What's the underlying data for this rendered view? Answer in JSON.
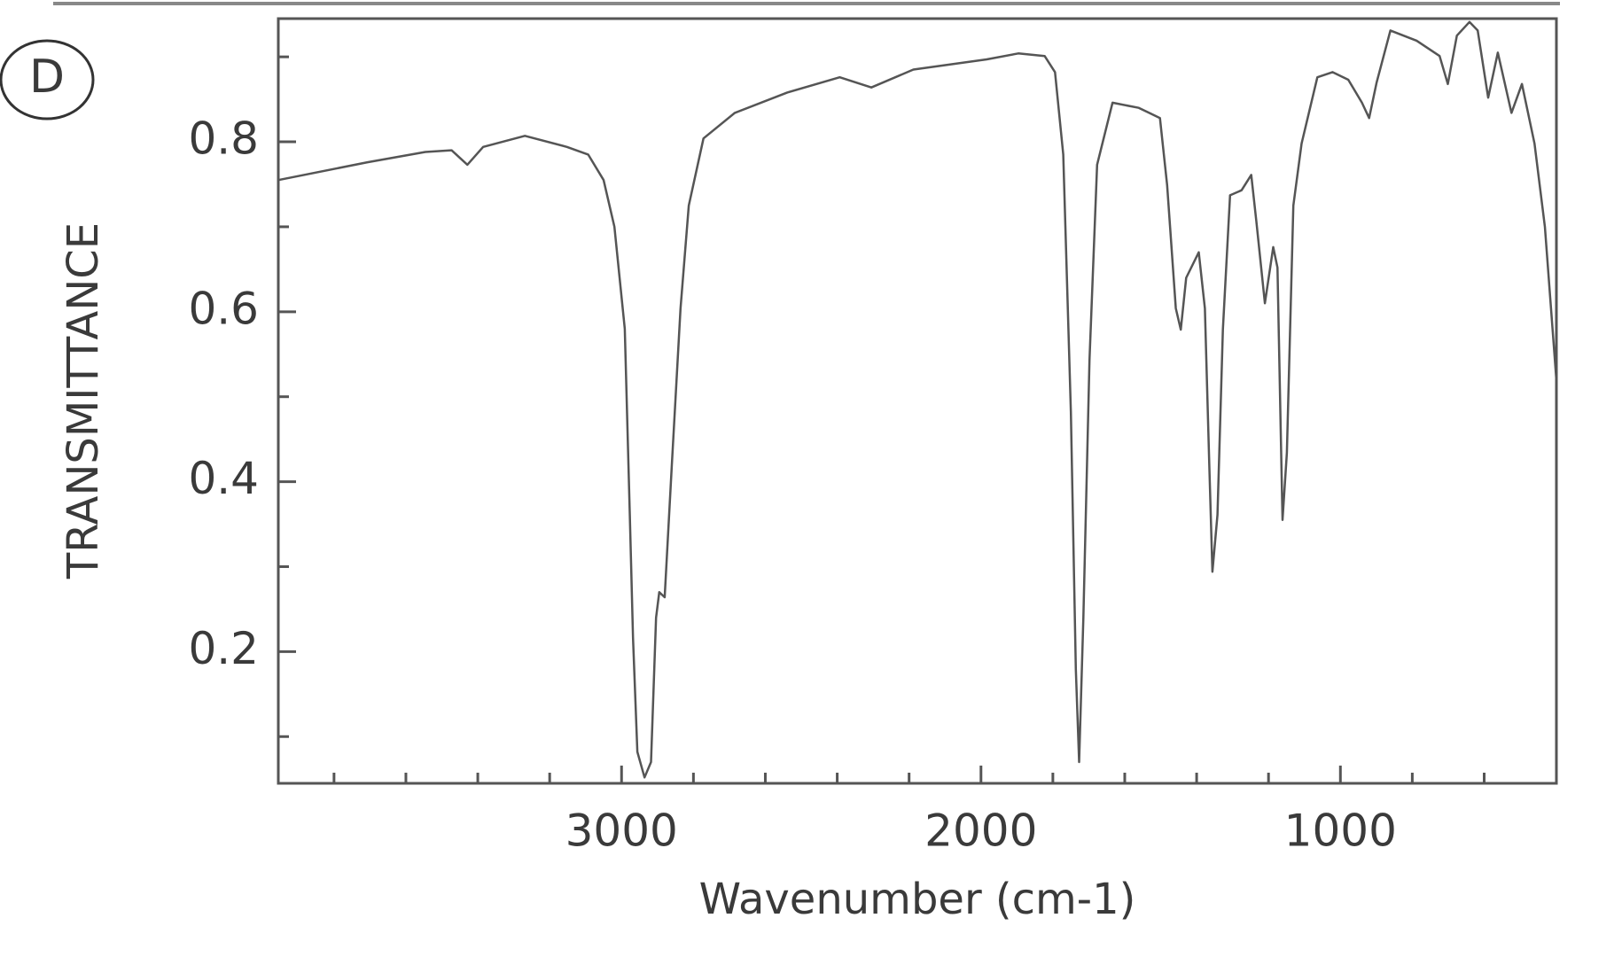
{
  "chart_data": {
    "type": "line",
    "annotation": "D",
    "x_label": "Wavenumber (cm-1)",
    "y_label": "TRANSMITTANCE",
    "color": "#555555",
    "xlim": [
      3955,
      399
    ],
    "ylim": [
      0.045,
      0.945
    ],
    "xticks": [
      3000,
      2000,
      1000
    ],
    "xminor_ticks": [
      3800,
      3600,
      3400,
      3200,
      2800,
      2600,
      2400,
      2200,
      1800,
      1600,
      1400,
      1200,
      800,
      600
    ],
    "yticks": [
      0.2,
      0.4,
      0.6,
      0.8
    ],
    "yminor_ticks": [
      0.1,
      0.3,
      0.5,
      0.7,
      0.9
    ],
    "x": [
      3955,
      3707,
      3546,
      3473,
      3429,
      3385,
      3269,
      3152,
      3093,
      3050,
      3020,
      2991,
      2977,
      2968,
      2956,
      2936,
      2918,
      2904,
      2895,
      2880,
      2860,
      2836,
      2813,
      2772,
      2685,
      2539,
      2393,
      2305,
      2188,
      1984,
      1896,
      1823,
      1794,
      1771,
      1750,
      1736,
      1727,
      1715,
      1698,
      1677,
      1634,
      1561,
      1502,
      1482,
      1458,
      1444,
      1429,
      1394,
      1377,
      1365,
      1356,
      1342,
      1327,
      1307,
      1275,
      1248,
      1234,
      1210,
      1187,
      1175,
      1166,
      1161,
      1149,
      1131,
      1108,
      1064,
      1022,
      978,
      940,
      920,
      899,
      861,
      788,
      724,
      701,
      676,
      641,
      618,
      589,
      562,
      524,
      495,
      460,
      431,
      399
    ],
    "values": [
      0.755,
      0.776,
      0.788,
      0.79,
      0.773,
      0.794,
      0.807,
      0.794,
      0.785,
      0.755,
      0.7,
      0.58,
      0.36,
      0.216,
      0.082,
      0.052,
      0.07,
      0.24,
      0.27,
      0.264,
      0.42,
      0.604,
      0.725,
      0.804,
      0.834,
      0.858,
      0.876,
      0.864,
      0.885,
      0.897,
      0.904,
      0.901,
      0.882,
      0.785,
      0.482,
      0.179,
      0.07,
      0.24,
      0.543,
      0.773,
      0.846,
      0.84,
      0.828,
      0.749,
      0.604,
      0.579,
      0.64,
      0.67,
      0.604,
      0.422,
      0.294,
      0.361,
      0.579,
      0.737,
      0.743,
      0.761,
      0.707,
      0.61,
      0.676,
      0.652,
      0.458,
      0.355,
      0.434,
      0.725,
      0.798,
      0.876,
      0.882,
      0.873,
      0.846,
      0.828,
      0.87,
      0.931,
      0.919,
      0.901,
      0.868,
      0.925,
      0.941,
      0.931,
      0.852,
      0.905,
      0.834,
      0.868,
      0.798,
      0.7,
      0.519
    ]
  }
}
